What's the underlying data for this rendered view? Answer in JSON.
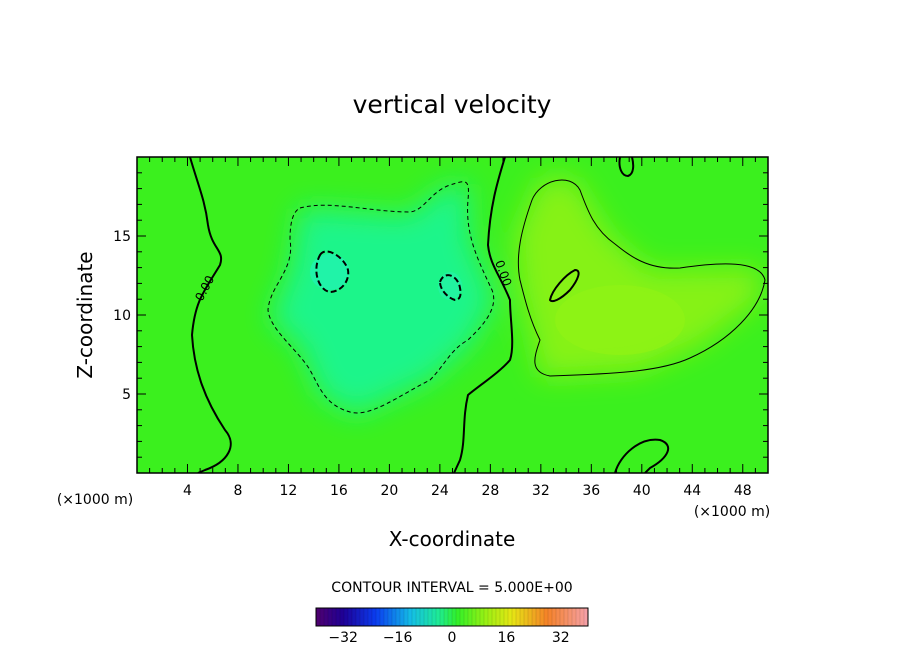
{
  "chart_data": {
    "type": "heatmap",
    "title": "vertical velocity",
    "xlabel": "X-coordinate",
    "ylabel": "Z-coordinate",
    "x_unit_left": "(×1000 m)",
    "x_unit_right": "(×1000 m)",
    "xlim": [
      0,
      50
    ],
    "ylim": [
      0,
      20
    ],
    "xticks": [
      4,
      8,
      12,
      16,
      20,
      24,
      28,
      32,
      36,
      40,
      44,
      48
    ],
    "yticks": [
      5,
      10,
      15
    ],
    "contour_interval_text": "CONTOUR INTERVAL = 5.000E+00",
    "contour_labels": [
      "0.00",
      "0.00"
    ],
    "colorbar": {
      "min": -40,
      "max": 40,
      "ticks": [
        -32,
        -16,
        0,
        16,
        32
      ],
      "tick_labels": [
        "−32",
        "−16",
        "0",
        "16",
        "32"
      ]
    },
    "features": [
      {
        "kind": "min",
        "x": 15,
        "z": 12.8,
        "value": -8
      },
      {
        "kind": "min",
        "x": 25,
        "z": 11.8,
        "value": -7
      },
      {
        "kind": "max",
        "x": 34,
        "z": 12,
        "value": 7
      },
      {
        "kind": "max",
        "x": 39,
        "z": 10,
        "value": 6
      }
    ]
  }
}
